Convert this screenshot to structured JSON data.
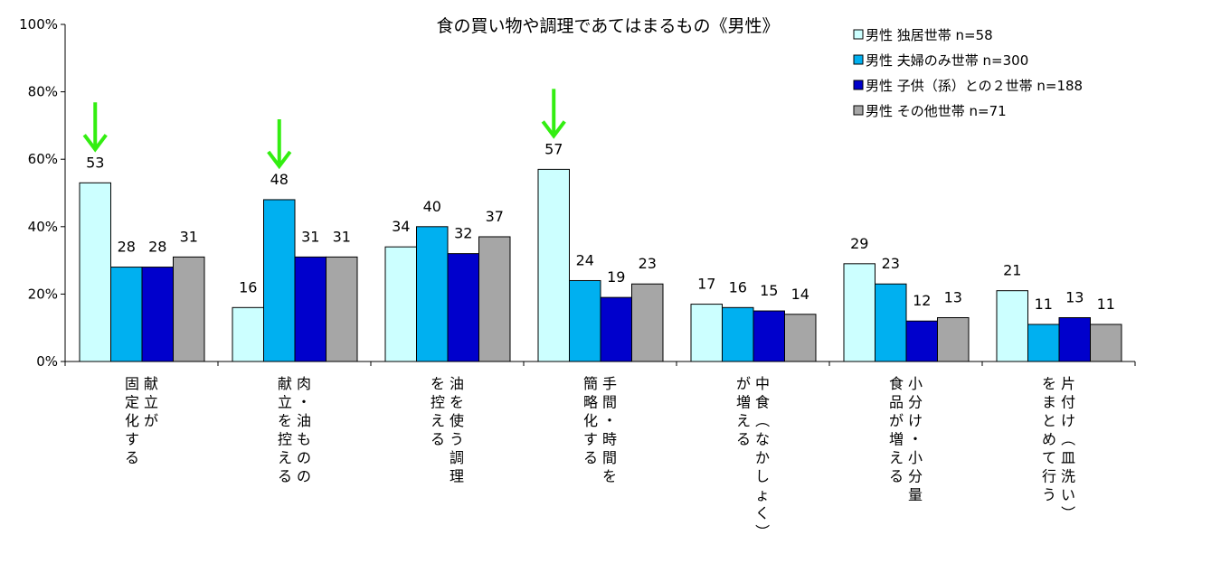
{
  "chart_data": {
    "type": "bar",
    "title": "食の買い物や調理であてはまるもの《男性》",
    "categories": [
      [
        "献立が",
        "固定化する"
      ],
      [
        "肉・油ものの",
        "献立を控える"
      ],
      [
        "油を使う調理",
        "を控える"
      ],
      [
        "手間・時間を",
        "簡略化する"
      ],
      [
        "中食（なかしょく）",
        "が増える"
      ],
      [
        "小分け・小分量",
        "食品が増える"
      ],
      [
        "片付け（皿洗い）",
        "をまとめて行う"
      ]
    ],
    "series": [
      {
        "name": "男性 独居世帯 n=58",
        "color": "#ccffff",
        "values": [
          53,
          16,
          34,
          57,
          17,
          29,
          21
        ]
      },
      {
        "name": "男性 夫婦のみ世帯 n=300",
        "color": "#00b0f0",
        "values": [
          28,
          48,
          40,
          24,
          16,
          23,
          11
        ]
      },
      {
        "name": "男性 子供（孫）との２世帯 n=188",
        "color": "#0000cc",
        "values": [
          28,
          31,
          32,
          19,
          15,
          12,
          13
        ]
      },
      {
        "name": "男性 その他世帯 n=71",
        "color": "#a6a6a6",
        "values": [
          31,
          31,
          37,
          23,
          14,
          13,
          11
        ]
      }
    ],
    "ylim": [
      0,
      100
    ],
    "yticks": [
      "0%",
      "20%",
      "40%",
      "60%",
      "80%",
      "100%"
    ],
    "grid": false,
    "legend_position": "top-right",
    "highlight_arrows": [
      {
        "category_index": 0,
        "series_index": 0
      },
      {
        "category_index": 1,
        "series_index": 1
      },
      {
        "category_index": 3,
        "series_index": 0
      }
    ],
    "arrow_color": "#33ee11"
  }
}
